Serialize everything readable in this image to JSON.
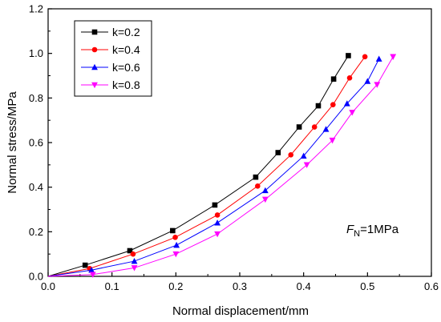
{
  "chart_data": {
    "type": "line",
    "xlabel": "Normal displacement/mm",
    "ylabel": "Normal stress/MPa",
    "xlim": [
      0.0,
      0.6
    ],
    "ylim": [
      0.0,
      1.2
    ],
    "xticks": [
      "0.0",
      "0.1",
      "0.2",
      "0.3",
      "0.4",
      "0.5",
      "0.6"
    ],
    "yticks": [
      "0.0",
      "0.2",
      "0.4",
      "0.6",
      "0.8",
      "1.0",
      "1.2"
    ],
    "grid": false,
    "legend_position": "top-left",
    "annotation": {
      "italic": "F",
      "sub": "N",
      "rest": "=1MPa"
    },
    "series": [
      {
        "name": "k=0.2",
        "color": "#000000",
        "marker": "square",
        "x": [
          0.0,
          0.058,
          0.128,
          0.195,
          0.261,
          0.325,
          0.36,
          0.393,
          0.423,
          0.447,
          0.47
        ],
        "y": [
          0.0,
          0.05,
          0.115,
          0.205,
          0.32,
          0.445,
          0.555,
          0.67,
          0.765,
          0.885,
          0.99
        ]
      },
      {
        "name": "k=0.4",
        "color": "#ff0000",
        "marker": "circle",
        "x": [
          0.0,
          0.065,
          0.133,
          0.199,
          0.265,
          0.328,
          0.38,
          0.417,
          0.446,
          0.472,
          0.496
        ],
        "y": [
          0.0,
          0.035,
          0.1,
          0.175,
          0.275,
          0.405,
          0.545,
          0.67,
          0.77,
          0.89,
          0.985
        ]
      },
      {
        "name": "k=0.6",
        "color": "#0000ff",
        "marker": "triangle-up",
        "x": [
          0.0,
          0.068,
          0.135,
          0.201,
          0.265,
          0.34,
          0.4,
          0.435,
          0.468,
          0.5,
          0.518
        ],
        "y": [
          0.0,
          0.028,
          0.068,
          0.14,
          0.24,
          0.385,
          0.54,
          0.66,
          0.775,
          0.875,
          0.975
        ]
      },
      {
        "name": "k=0.8",
        "color": "#ff00ff",
        "marker": "triangle-down",
        "x": [
          0.0,
          0.07,
          0.135,
          0.2,
          0.265,
          0.34,
          0.405,
          0.445,
          0.476,
          0.515,
          0.54
        ],
        "y": [
          0.0,
          0.008,
          0.038,
          0.1,
          0.19,
          0.345,
          0.5,
          0.61,
          0.735,
          0.86,
          0.985
        ]
      }
    ]
  }
}
